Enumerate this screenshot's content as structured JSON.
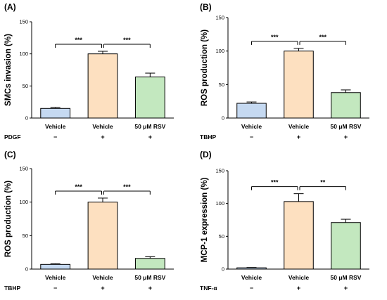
{
  "chart_data": [
    {
      "panel": "(A)",
      "type": "bar",
      "ylabel": "SMCs invasion (%)",
      "ylim": [
        0,
        150
      ],
      "yticks": [
        0,
        50,
        100,
        150
      ],
      "categories": [
        "Vehicle",
        "Vehicle",
        "50 μM RSV"
      ],
      "values": [
        15,
        100,
        64
      ],
      "errors": [
        1.5,
        4,
        6
      ],
      "bar_colors": [
        "#c5d9f1",
        "#fde0c0",
        "#c3e8bf"
      ],
      "treatment": {
        "name": "PDGF",
        "marks": [
          "−",
          "+",
          "+"
        ]
      },
      "significance": [
        {
          "from": 0,
          "to": 1,
          "label": "***"
        },
        {
          "from": 1,
          "to": 2,
          "label": "***"
        }
      ]
    },
    {
      "panel": "(B)",
      "type": "bar",
      "ylabel": "ROS production (%)",
      "ylim": [
        0,
        150
      ],
      "yticks": [
        0,
        50,
        100,
        150
      ],
      "categories": [
        "Vehicle",
        "Vehicle",
        "50 μM RSV"
      ],
      "values": [
        22,
        100,
        38
      ],
      "errors": [
        2,
        4,
        4
      ],
      "bar_colors": [
        "#c5d9f1",
        "#fde0c0",
        "#c3e8bf"
      ],
      "treatment": {
        "name": "TBHP",
        "marks": [
          "−",
          "+",
          "+"
        ]
      },
      "significance": [
        {
          "from": 0,
          "to": 1,
          "label": "***"
        },
        {
          "from": 1,
          "to": 2,
          "label": "***"
        }
      ]
    },
    {
      "panel": "(C)",
      "type": "bar",
      "ylabel": "ROS production (%)",
      "ylim": [
        0,
        150
      ],
      "yticks": [
        0,
        50,
        100,
        150
      ],
      "categories": [
        "Vehicle",
        "Vehicle",
        "50 μM RSV"
      ],
      "values": [
        7,
        100,
        16
      ],
      "errors": [
        1,
        6,
        2.5
      ],
      "bar_colors": [
        "#c5d9f1",
        "#fde0c0",
        "#c3e8bf"
      ],
      "treatment": {
        "name": "TBHP",
        "marks": [
          "−",
          "+",
          "+"
        ]
      },
      "significance": [
        {
          "from": 0,
          "to": 1,
          "label": "***"
        },
        {
          "from": 1,
          "to": 2,
          "label": "***"
        }
      ]
    },
    {
      "panel": "(D)",
      "type": "bar",
      "ylabel": "MCP-1 expression (%)",
      "ylim": [
        0,
        150
      ],
      "yticks": [
        0,
        50,
        100,
        150
      ],
      "categories": [
        "Vehicle",
        "Vehicle",
        "50 μM RSV"
      ],
      "values": [
        2,
        103,
        71
      ],
      "errors": [
        0.5,
        12,
        5
      ],
      "bar_colors": [
        "#c5d9f1",
        "#fde0c0",
        "#c3e8bf"
      ],
      "treatment": {
        "name": "TNF-α",
        "marks": [
          "−",
          "+",
          "+"
        ]
      },
      "significance": [
        {
          "from": 0,
          "to": 1,
          "label": "***"
        },
        {
          "from": 1,
          "to": 2,
          "label": "**"
        }
      ]
    }
  ]
}
